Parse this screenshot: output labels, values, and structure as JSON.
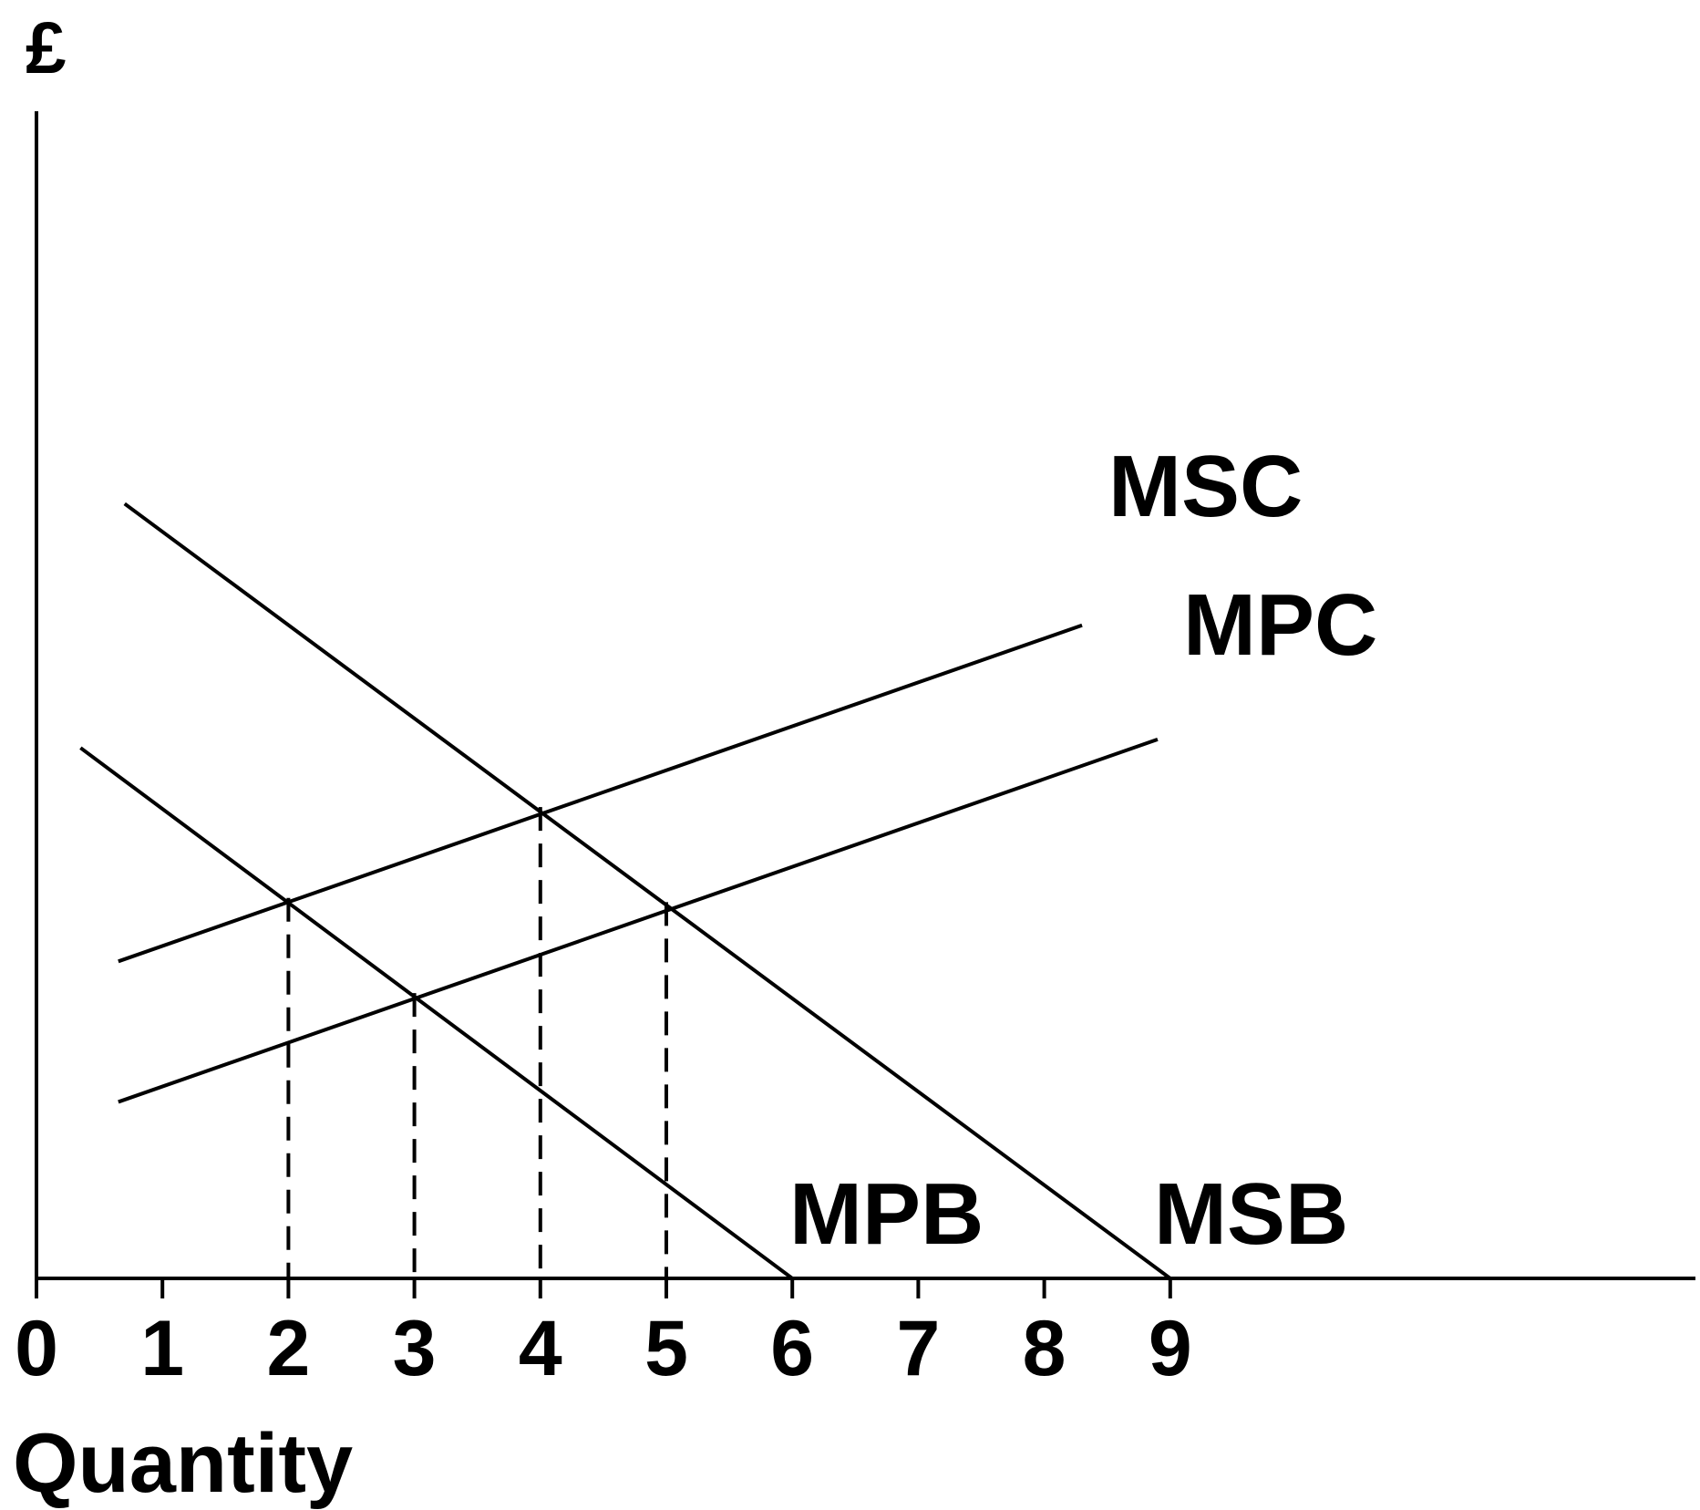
{
  "chart_data": {
    "type": "line",
    "y_axis_label": "£",
    "x_axis_label": "Quantity",
    "x_ticks": [
      "0",
      "1",
      "2",
      "3",
      "4",
      "5",
      "6",
      "7",
      "8",
      "9"
    ],
    "xlim": [
      0,
      13.2
    ],
    "ylim": [
      0,
      11.8
    ],
    "grid": false,
    "series": [
      {
        "name": "MSC",
        "points": [
          [
            0.65,
            3.0
          ],
          [
            8.3,
            6.18
          ]
        ]
      },
      {
        "name": "MPC",
        "points": [
          [
            0.65,
            1.67
          ],
          [
            8.9,
            5.1
          ]
        ]
      },
      {
        "name": "MPB",
        "points": [
          [
            0.35,
            5.02
          ],
          [
            6.0,
            0.0
          ]
        ]
      },
      {
        "name": "MSB",
        "points": [
          [
            0.7,
            7.33
          ],
          [
            9.0,
            0.0
          ]
        ]
      }
    ],
    "reference_lines": [
      {
        "x": 2,
        "y": 3.6
      },
      {
        "x": 3,
        "y": 2.7
      },
      {
        "x": 4,
        "y": 4.46
      },
      {
        "x": 5,
        "y": 3.56
      }
    ]
  }
}
